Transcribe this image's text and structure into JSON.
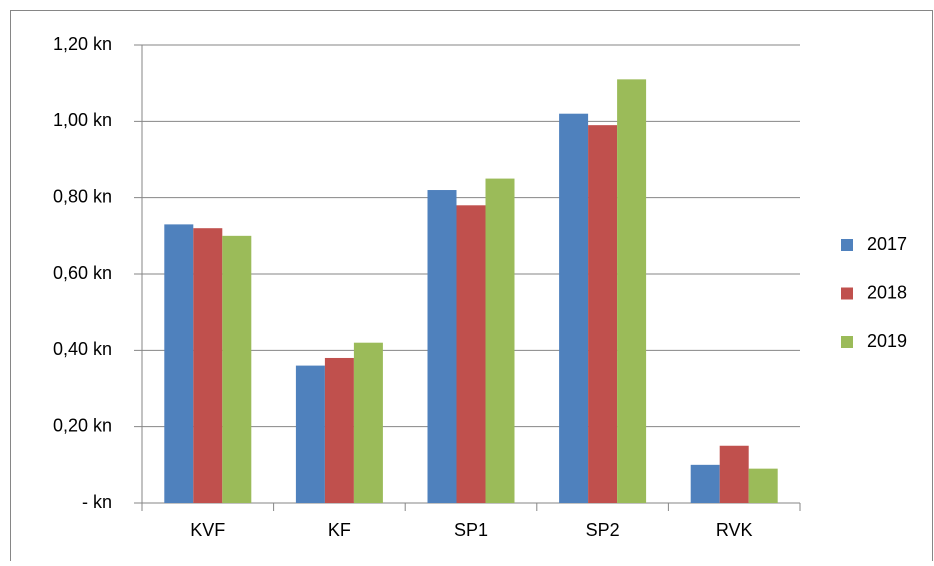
{
  "chart_data": {
    "type": "bar",
    "categories": [
      "KVF",
      "KF",
      "SP1",
      "SP2",
      "RVK"
    ],
    "series": [
      {
        "name": "2017",
        "color": "#4f81bd",
        "values": [
          0.73,
          0.36,
          0.82,
          1.02,
          0.1
        ]
      },
      {
        "name": "2018",
        "color": "#c0504d",
        "values": [
          0.72,
          0.38,
          0.78,
          0.99,
          0.15
        ]
      },
      {
        "name": "2019",
        "color": "#9bbb59",
        "values": [
          0.7,
          0.42,
          0.85,
          1.11,
          0.09
        ]
      }
    ],
    "ylim": [
      0,
      1.2
    ],
    "yticks": [
      {
        "value": 0,
        "label": "-   kn"
      },
      {
        "value": 0.2,
        "label": "0,20 kn"
      },
      {
        "value": 0.4,
        "label": "0,40 kn"
      },
      {
        "value": 0.6,
        "label": "0,60 kn"
      },
      {
        "value": 0.8,
        "label": "0,80 kn"
      },
      {
        "value": 1.0,
        "label": "1,00 kn"
      },
      {
        "value": 1.2,
        "label": "1,20 kn"
      }
    ],
    "grid": true,
    "legend": "right"
  }
}
